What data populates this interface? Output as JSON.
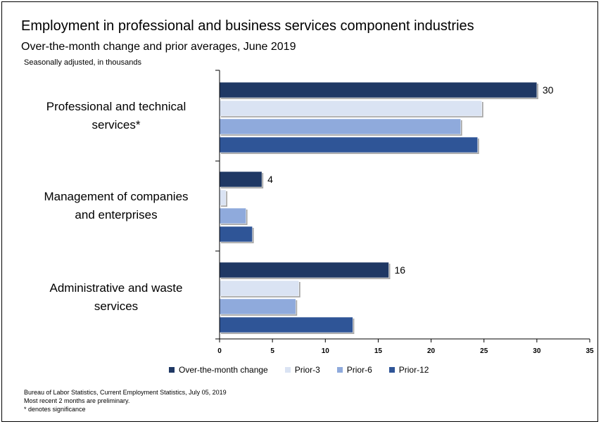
{
  "title": "Employment in professional and business services component industries",
  "subtitle": "Over-the-month change and prior averages, June 2019",
  "units_note": "Seasonally adjusted, in thousands",
  "colors": {
    "Over-the-month change": "#1f3864",
    "Prior-3": "#dae3f3",
    "Prior-6": "#8faadc",
    "Prior-12": "#2f5597"
  },
  "chart_data": {
    "type": "bar",
    "orientation": "horizontal",
    "categories": [
      [
        "Professional and technical",
        "services*"
      ],
      [
        "Management of companies",
        "and enterprises"
      ],
      [
        "Administrative and waste",
        "services"
      ]
    ],
    "series": [
      {
        "name": "Over-the-month change",
        "values": [
          30,
          4,
          16
        ]
      },
      {
        "name": "Prior-3",
        "values": [
          24.8,
          0.6,
          7.5
        ]
      },
      {
        "name": "Prior-6",
        "values": [
          22.8,
          2.5,
          7.2
        ]
      },
      {
        "name": "Prior-12",
        "values": [
          24.4,
          3.1,
          12.6
        ]
      }
    ],
    "data_labels": [
      "30",
      "4",
      "16"
    ],
    "xlim": [
      0,
      35
    ],
    "xticks": [
      "0",
      "5",
      "10",
      "15",
      "20",
      "25",
      "30",
      "35"
    ],
    "legend_position": "bottom",
    "grid": false
  },
  "source_lines": [
    "Bureau of Labor Statistics, Current Employment Statistics, July 05, 2019",
    "Most recent 2 months are preliminary.",
    "* denotes significance"
  ]
}
